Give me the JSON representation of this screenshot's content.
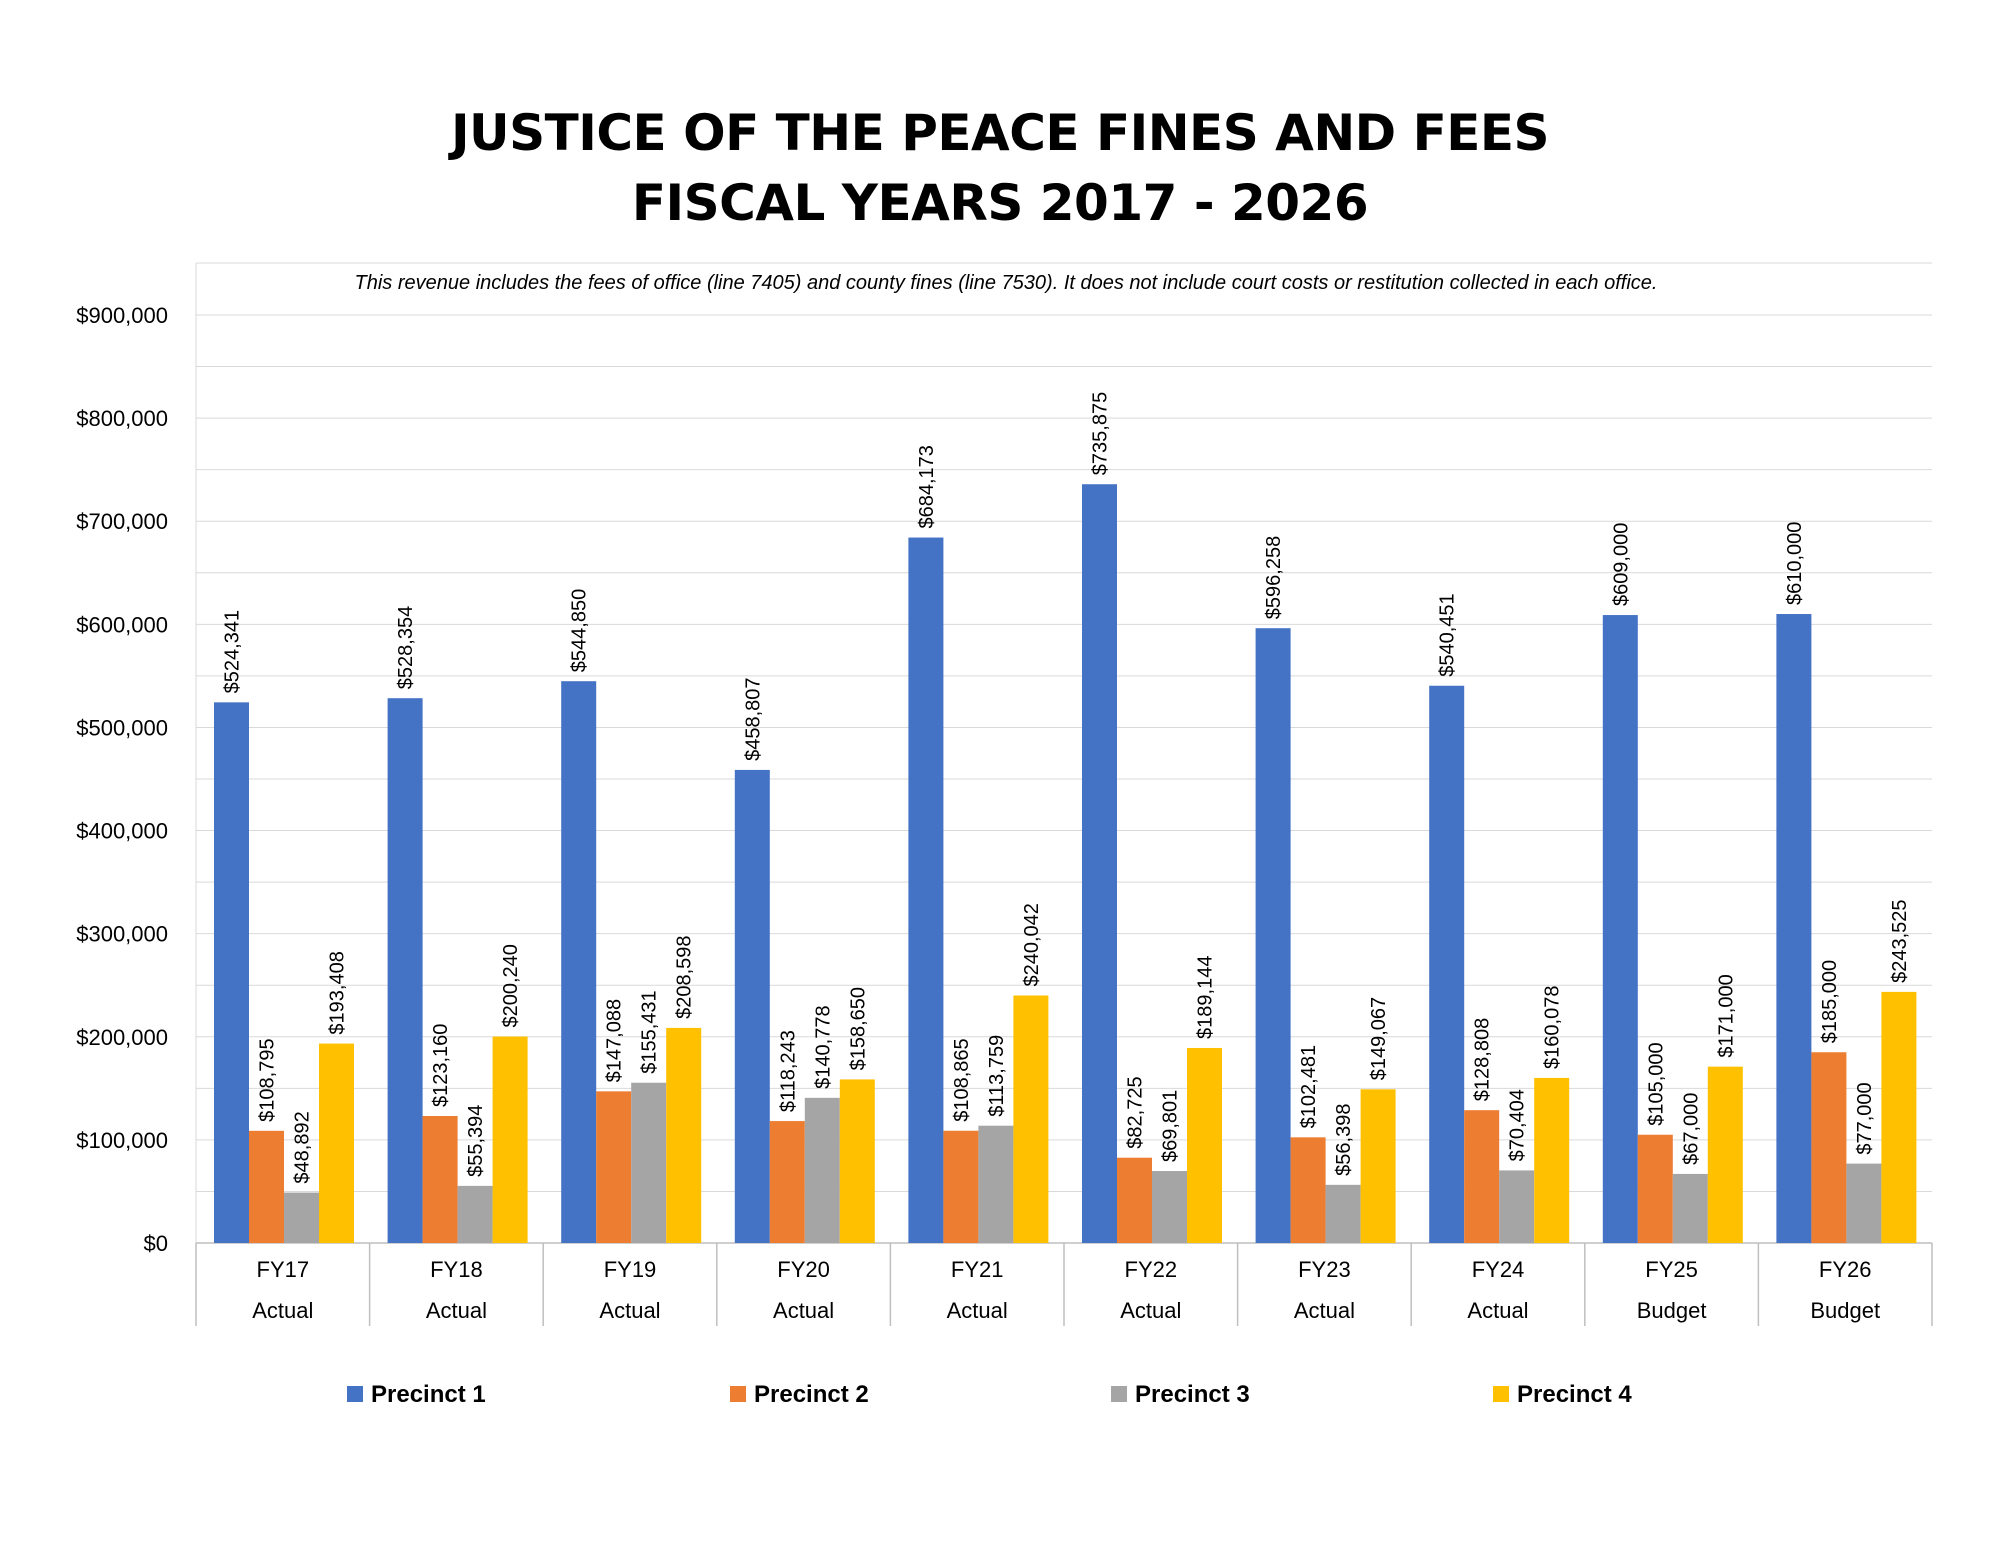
{
  "chart_data": {
    "type": "bar",
    "title_lines": [
      "JUSTICE OF THE PEACE FINES AND FEES",
      "FISCAL YEARS 2017 - 2026"
    ],
    "note": "This revenue includes the fees of office (line 7405) and county fines (line 7530).  It does not include court costs or restitution collected in each office.",
    "xlabel": "",
    "ylabel": "",
    "ylim": [
      0,
      900000
    ],
    "yticks": [
      0,
      100000,
      200000,
      300000,
      400000,
      500000,
      600000,
      700000,
      800000,
      900000
    ],
    "ytick_labels": [
      "$0",
      "$100,000",
      "$200,000",
      "$300,000",
      "$400,000",
      "$500,000",
      "$600,000",
      "$700,000",
      "$800,000",
      "$900,000"
    ],
    "grid": true,
    "legend_position": "bottom",
    "categories": [
      "FY17",
      "FY18",
      "FY19",
      "FY20",
      "FY21",
      "FY22",
      "FY23",
      "FY24",
      "FY25",
      "FY26"
    ],
    "category_sublabels": [
      "Actual",
      "Actual",
      "Actual",
      "Actual",
      "Actual",
      "Actual",
      "Actual",
      "Actual",
      "Budget",
      "Budget"
    ],
    "series": [
      {
        "name": "Precinct 1",
        "color": "#4472C4",
        "values": [
          524341,
          528354,
          544850,
          458807,
          684173,
          735875,
          596258,
          540451,
          609000,
          610000
        ],
        "labels": [
          "$524,341",
          "$528,354",
          "$544,850",
          "$458,807",
          "$684,173",
          "$735,875",
          "$596,258",
          "$540,451",
          "$609,000",
          "$610,000"
        ]
      },
      {
        "name": "Precinct 2",
        "color": "#ED7D31",
        "values": [
          108795,
          123160,
          147088,
          118243,
          108865,
          82725,
          102481,
          128808,
          105000,
          185000
        ],
        "labels": [
          "$108,795",
          "$123,160",
          "$147,088",
          "$118,243",
          "$108,865",
          "$82,725",
          "$102,481",
          "$128,808",
          "$105,000",
          "$185,000"
        ]
      },
      {
        "name": "Precinct 3",
        "color": "#A5A5A5",
        "values": [
          48892,
          55394,
          155431,
          140778,
          113759,
          69801,
          56398,
          70404,
          67000,
          77000
        ],
        "labels": [
          "$48,892",
          "$55,394",
          "$155,431",
          "$140,778",
          "$113,759",
          "$69,801",
          "$56,398",
          "$70,404",
          "$67,000",
          "$77,000"
        ]
      },
      {
        "name": "Precinct 4",
        "color": "#FFC000",
        "values": [
          193408,
          200240,
          208598,
          158650,
          240042,
          189144,
          149067,
          160078,
          171000,
          243525
        ],
        "labels": [
          "$193,408",
          "$200,240",
          "$208,598",
          "$158,650",
          "$240,042",
          "$189,144",
          "$149,067",
          "$160,078",
          "$171,000",
          "$243,525"
        ]
      }
    ]
  }
}
